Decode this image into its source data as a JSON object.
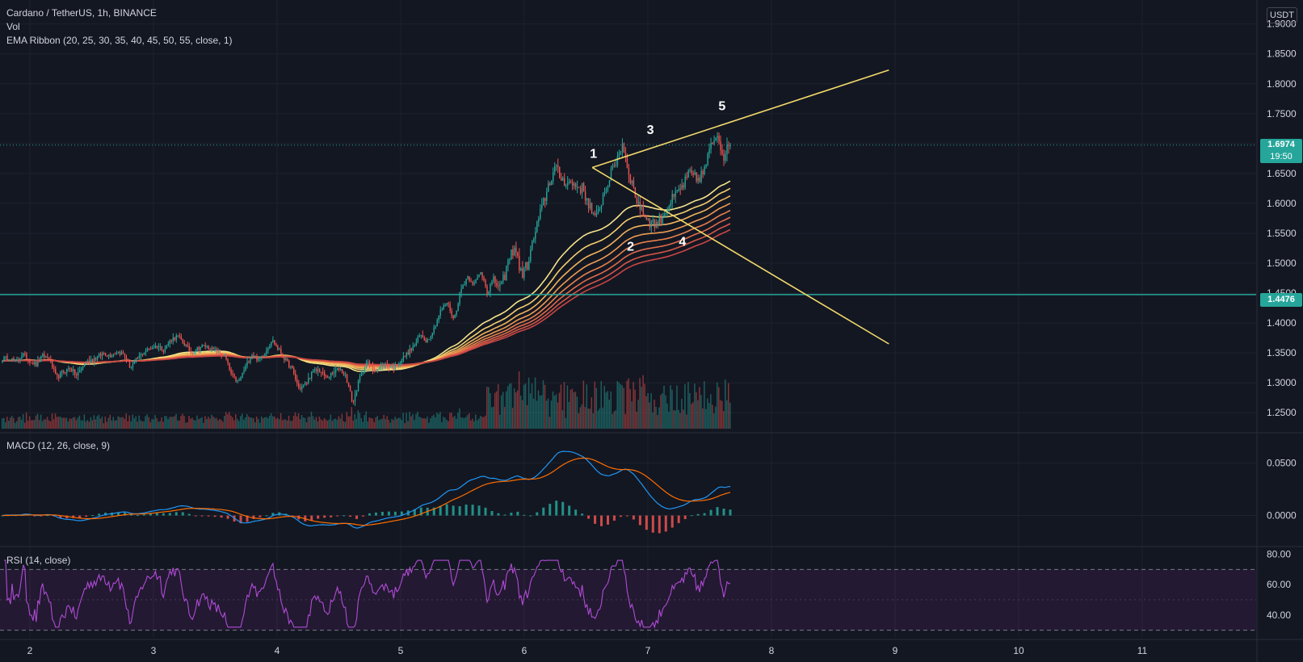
{
  "header": {
    "symbol": "Cardano / TetherUS, 1h, BINANCE",
    "vol_label": "Vol",
    "ema_label": "EMA Ribbon (20, 25, 30, 35, 40, 45, 50, 55, close, 1)",
    "macd_label": "MACD (12, 26, close, 9)",
    "rsi_label": "RSI (14, close)",
    "currency": "USDT"
  },
  "price_badge": {
    "value": "1.6974",
    "timer": "19:50",
    "color": "#26a69a"
  },
  "hline_badge": {
    "value": "1.4476",
    "color": "#26a69a"
  },
  "colors": {
    "up": "#26a69a",
    "down": "#ef5350",
    "trendline": "#f2d96b",
    "macd": "#2196f3",
    "signal": "#ff6d00",
    "rsi": "#9c27b0",
    "background": "#131722"
  },
  "chart_data": [
    {
      "type": "candlestick",
      "title": "Cardano / TetherUS, 1h, BINANCE",
      "x_axis": {
        "tick_labels": [
          "2",
          "3",
          "4",
          "5",
          "6",
          "7",
          "8",
          "9",
          "10",
          "11"
        ]
      },
      "y_axis": {
        "tick_labels": [
          "1.2500",
          "1.3000",
          "1.3500",
          "1.4000",
          "1.4500",
          "1.5000",
          "1.5500",
          "1.6000",
          "1.6500",
          "1.7000",
          "1.7500",
          "1.8000",
          "1.8500",
          "1.9000"
        ],
        "range": [
          1.23,
          1.905
        ]
      },
      "horizontal_line": 1.4476,
      "last_price": 1.6974,
      "closes": [
        1.34,
        1.342,
        1.335,
        1.348,
        1.338,
        1.33,
        1.345,
        1.34,
        1.308,
        1.318,
        1.325,
        1.312,
        1.33,
        1.338,
        1.342,
        1.35,
        1.346,
        1.352,
        1.348,
        1.325,
        1.34,
        1.352,
        1.358,
        1.362,
        1.355,
        1.372,
        1.378,
        1.365,
        1.35,
        1.358,
        1.362,
        1.356,
        1.352,
        1.345,
        1.312,
        1.3,
        1.325,
        1.348,
        1.338,
        1.352,
        1.372,
        1.355,
        1.338,
        1.322,
        1.29,
        1.298,
        1.318,
        1.322,
        1.308,
        1.315,
        1.325,
        1.31,
        1.265,
        1.308,
        1.335,
        1.322,
        1.325,
        1.33,
        1.325,
        1.335,
        1.348,
        1.36,
        1.38,
        1.37,
        1.39,
        1.42,
        1.435,
        1.405,
        1.455,
        1.478,
        1.465,
        1.485,
        1.455,
        1.47,
        1.458,
        1.5,
        1.53,
        1.48,
        1.5,
        1.55,
        1.59,
        1.63,
        1.66,
        1.64,
        1.635,
        1.63,
        1.625,
        1.6,
        1.57,
        1.61,
        1.64,
        1.67,
        1.7,
        1.65,
        1.61,
        1.585,
        1.57,
        1.565,
        1.58,
        1.6,
        1.615,
        1.63,
        1.65,
        1.64,
        1.65,
        1.69,
        1.72,
        1.68,
        1.697
      ],
      "ema_ribbon_periods": [
        20,
        25,
        30,
        35,
        40,
        45,
        50,
        55
      ],
      "wave_labels": [
        "1",
        "2",
        "3",
        "4",
        "5"
      ],
      "trendlines": [
        {
          "from": [
            "6.55",
            1.66
          ],
          "to": [
            "8.95",
            1.823
          ]
        },
        {
          "from": [
            "6.55",
            1.66
          ],
          "to": [
            "8.95",
            1.365
          ]
        }
      ]
    },
    {
      "type": "bar",
      "title": "Vol"
    },
    {
      "type": "line",
      "title": "MACD (12, 26, close, 9)",
      "y_axis": {
        "tick_labels": [
          "0.0000",
          "0.0500"
        ],
        "range": [
          -0.028,
          0.078
        ]
      },
      "series": [
        {
          "name": "MACD",
          "color": "#2196f3"
        },
        {
          "name": "Signal",
          "color": "#ff6d00"
        }
      ]
    },
    {
      "type": "line",
      "title": "RSI (14, close)",
      "y_axis": {
        "tick_labels": [
          "40.00",
          "60.00",
          "80.00"
        ],
        "range": [
          25,
          84
        ]
      },
      "bands": [
        30,
        70
      ]
    }
  ]
}
